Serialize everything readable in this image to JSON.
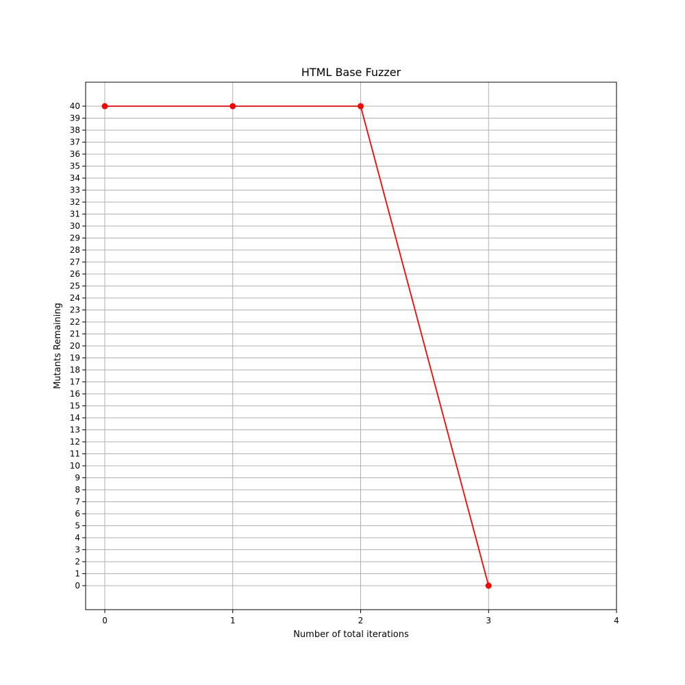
{
  "chart_data": {
    "type": "line",
    "title": "HTML Base Fuzzer",
    "xlabel": "Number of total iterations",
    "ylabel": "Mutants Remaining",
    "x": [
      0,
      1,
      2,
      3
    ],
    "series": [
      {
        "values": [
          40,
          40,
          40,
          0
        ]
      }
    ],
    "xlim": [
      -0.15,
      4
    ],
    "ylim": [
      -2,
      42
    ],
    "xticks": [
      "0",
      "1",
      "2",
      "3",
      "4"
    ],
    "yticks": [
      "0",
      "1",
      "2",
      "3",
      "4",
      "5",
      "6",
      "7",
      "8",
      "9",
      "10",
      "11",
      "12",
      "13",
      "14",
      "15",
      "16",
      "17",
      "18",
      "19",
      "20",
      "21",
      "22",
      "23",
      "24",
      "25",
      "26",
      "27",
      "28",
      "29",
      "30",
      "31",
      "32",
      "33",
      "34",
      "35",
      "36",
      "37",
      "38",
      "39",
      "40"
    ],
    "grid": true,
    "line_color": "#ff0000",
    "marker": "circle"
  }
}
